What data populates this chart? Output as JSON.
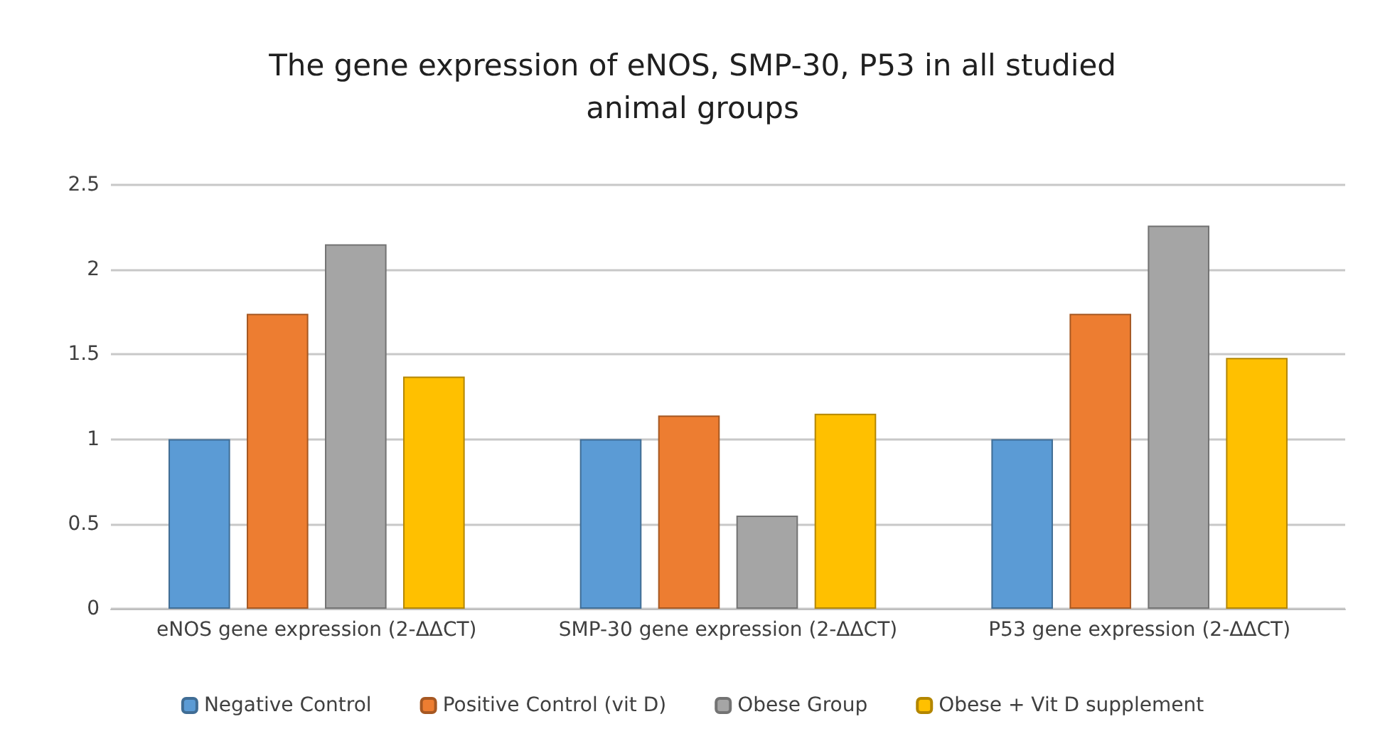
{
  "chart_data": {
    "type": "bar",
    "title": "The gene expression of eNOS, SMP-30, P53 in all studied\nanimal groups",
    "categories": [
      "eNOS gene expression (2-ΔΔCT)",
      "SMP-30 gene expression (2-ΔΔCT)",
      "P53 gene expression (2-ΔΔCT)"
    ],
    "series": [
      {
        "name": "Negative Control",
        "color": "#5b9bd5",
        "values": [
          1,
          1,
          1
        ]
      },
      {
        "name": "Positive Control (vit D)",
        "color": "#ed7d31",
        "values": [
          1.74,
          1.14,
          1.74
        ]
      },
      {
        "name": "Obese Group",
        "color": "#a5a5a5",
        "values": [
          2.15,
          0.55,
          2.26
        ]
      },
      {
        "name": "Obese + Vit D supplement",
        "color": "#ffc000",
        "values": [
          1.37,
          1.15,
          1.48
        ]
      }
    ],
    "ylim": [
      0,
      2.5
    ],
    "yticks": [
      0,
      0.5,
      1,
      1.5,
      2,
      2.5
    ],
    "grid": "y",
    "legend": "bottom"
  }
}
